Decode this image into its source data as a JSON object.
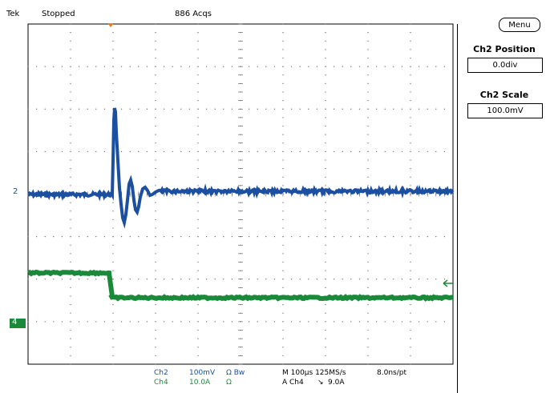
{
  "header": {
    "brand": "Tek",
    "state": "Stopped",
    "acqs": "886 Acqs"
  },
  "menu": {
    "label": "Menu"
  },
  "side_panel": {
    "position_title": "Ch2 Position",
    "position_value": "0.0div",
    "scale_title": "Ch2 Scale",
    "scale_value": "100.0mV"
  },
  "markers": {
    "ch2": "2",
    "ch4": "4"
  },
  "status": {
    "ch2_name": "Ch2",
    "ch2_scale": "100mV",
    "ch2_coupling": "Ω Bw",
    "ch4_name": "Ch4",
    "ch4_scale": "10.0A",
    "ch4_coupling": "Ω",
    "timebase": "M 100μs 125MS/s",
    "record": "8.0ns/pt",
    "trigger_source": "A Ch4",
    "trigger_slope": "↘",
    "trigger_level": "9.0A"
  },
  "colors": {
    "ch2": "#1c4fa0",
    "ch4": "#1a8a3a",
    "trigger": "#f07a20"
  }
}
